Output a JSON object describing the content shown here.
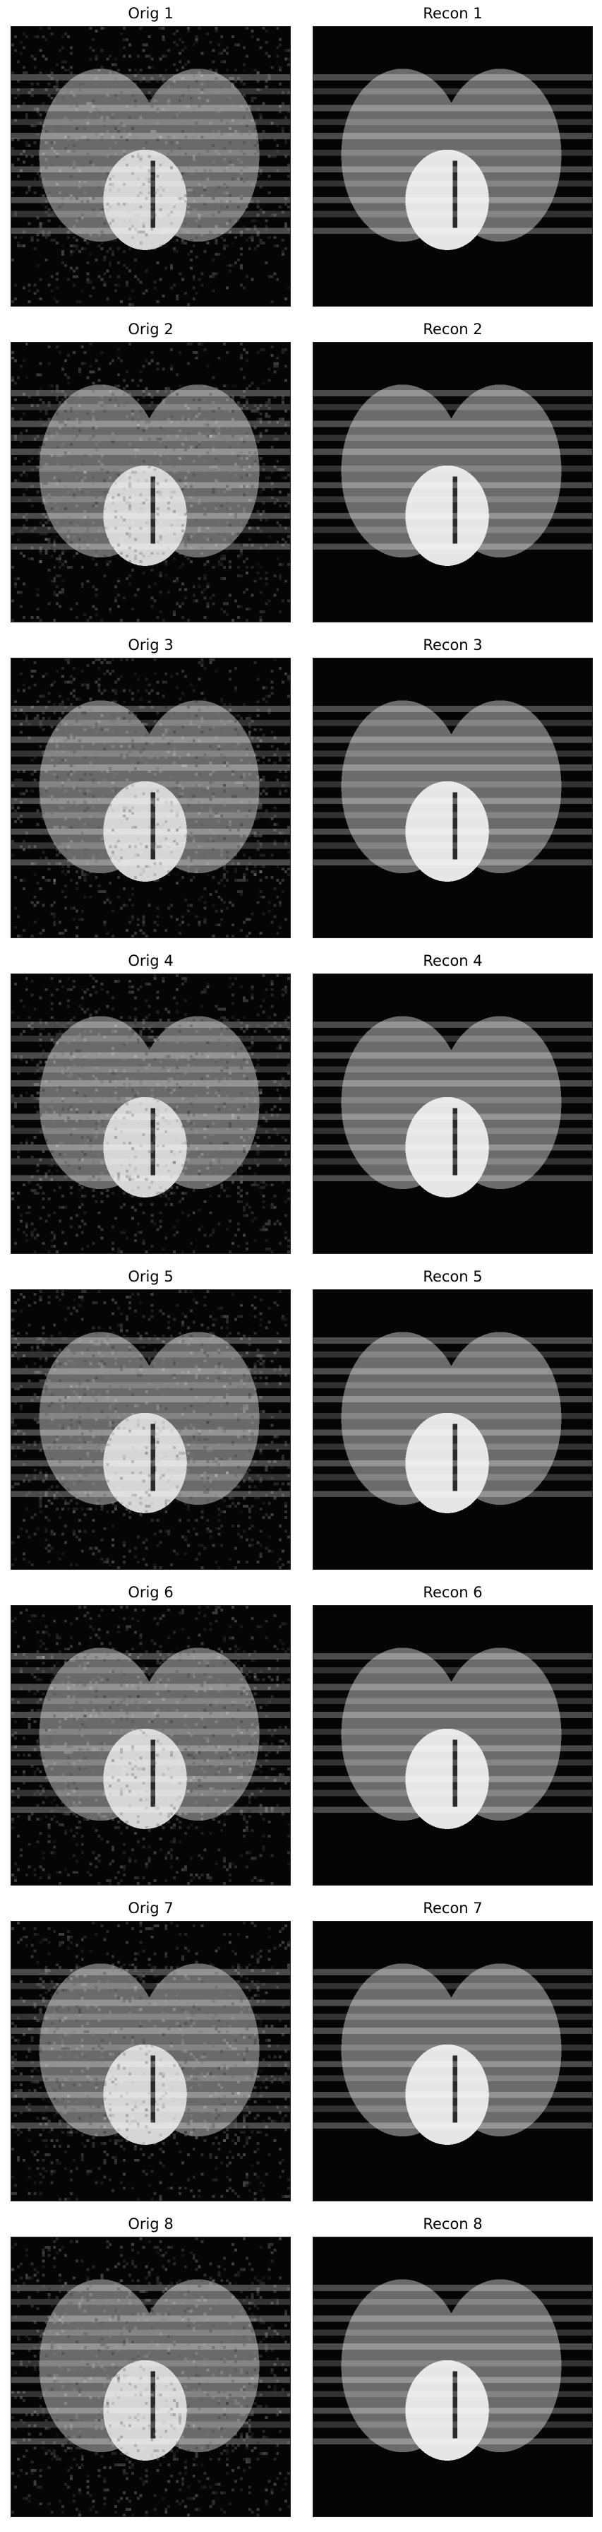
{
  "figure": {
    "panels": [
      {
        "title": "Orig 1",
        "kind": "original"
      },
      {
        "title": "Recon 1",
        "kind": "reconstruction"
      },
      {
        "title": "Orig 2",
        "kind": "original"
      },
      {
        "title": "Recon 2",
        "kind": "reconstruction"
      },
      {
        "title": "Orig 3",
        "kind": "original"
      },
      {
        "title": "Recon 3",
        "kind": "reconstruction"
      },
      {
        "title": "Orig 4",
        "kind": "original"
      },
      {
        "title": "Recon 4",
        "kind": "reconstruction"
      },
      {
        "title": "Orig 5",
        "kind": "original"
      },
      {
        "title": "Recon 5",
        "kind": "reconstruction"
      },
      {
        "title": "Orig 6",
        "kind": "original"
      },
      {
        "title": "Recon 6",
        "kind": "reconstruction"
      },
      {
        "title": "Orig 7",
        "kind": "original"
      },
      {
        "title": "Recon 7",
        "kind": "reconstruction"
      },
      {
        "title": "Orig 8",
        "kind": "original"
      },
      {
        "title": "Recon 8",
        "kind": "reconstruction"
      }
    ]
  }
}
